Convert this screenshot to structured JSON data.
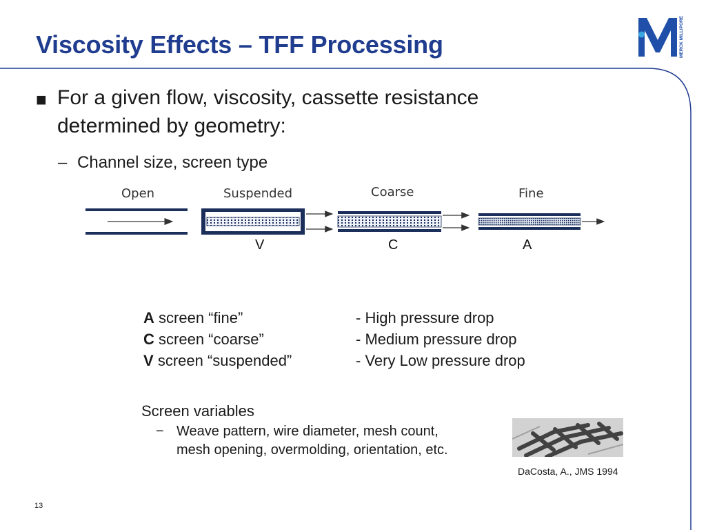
{
  "title": "Viscosity Effects – TFF Processing",
  "logo": {
    "letter": "M",
    "side_text": "MERCK MILLIPORE",
    "colors": {
      "blue": "#1f4fa8",
      "cyan": "#3aa8e0"
    }
  },
  "bullets": [
    {
      "marker": "■",
      "lines": [
        "For a given flow, viscosity, cassette resistance",
        "determined by geometry:"
      ]
    }
  ],
  "sub_bullet": {
    "marker": "–",
    "text": "Channel size, screen type"
  },
  "diagram": {
    "panels": [
      {
        "label": "Open",
        "letter": ""
      },
      {
        "label": "Suspended",
        "letter": "V"
      },
      {
        "label": "Coarse",
        "letter": "C"
      },
      {
        "label": "Fine",
        "letter": "A"
      }
    ]
  },
  "screen_table": {
    "rows": [
      {
        "letter": "A",
        "desc": "screen “fine”",
        "effect": "- High pressure drop"
      },
      {
        "letter": "C",
        "desc": "screen “coarse”",
        "effect": "- Medium pressure drop"
      },
      {
        "letter": "V",
        "desc": "screen “suspended”",
        "effect": "- Very Low pressure drop"
      }
    ]
  },
  "screen_variables": {
    "heading": "Screen variables",
    "dash": "−",
    "lines": [
      "Weave pattern, wire diameter, mesh count,",
      "mesh opening, overmolding, orientation, etc."
    ]
  },
  "citation": "DaCosta, A., JMS 1994",
  "page_number": "13",
  "colors": {
    "title": "#1f3c8f",
    "frame": "#1f3c8f"
  }
}
